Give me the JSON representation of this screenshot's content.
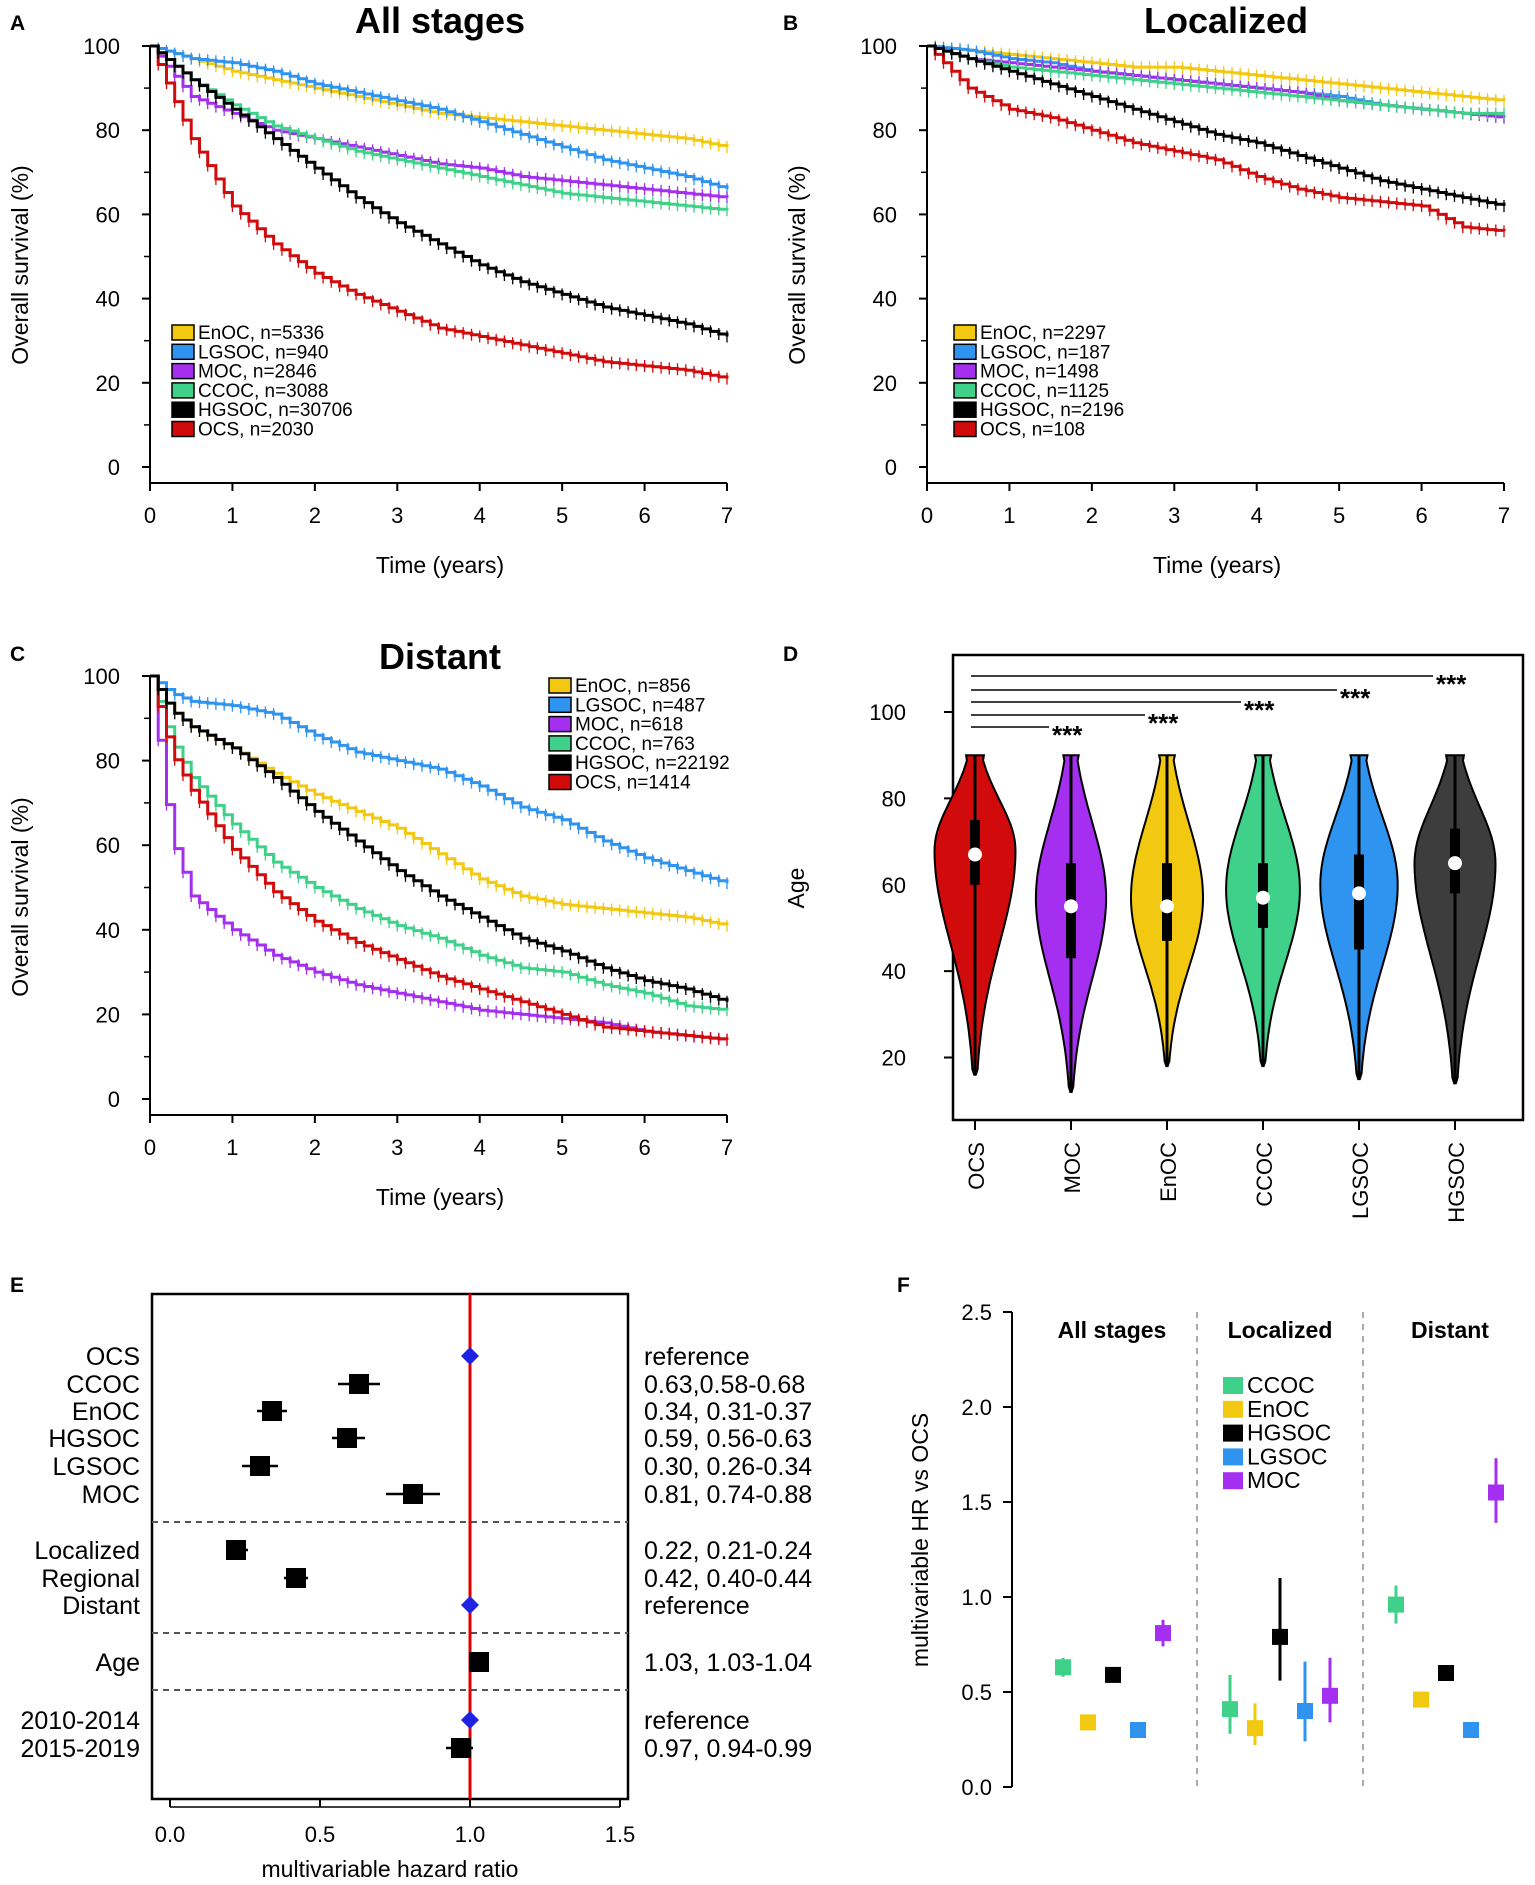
{
  "colors": {
    "EnOC": "#f2c811",
    "LGSOC": "#2f93f0",
    "MOC": "#a42ff0",
    "CCOC": "#3fd189",
    "HGSOC": "#000000",
    "OCS": "#d10b0b",
    "HGSOC_violin": "#3d3d3d",
    "reference_line": "#e00000",
    "reference_marker": "#1f22e0"
  },
  "chart_data": [
    {
      "panel": "A",
      "type": "line",
      "title": "All stages",
      "xlabel": "Time (years)",
      "ylabel": "Overall survival (%)",
      "xlim": [
        0,
        7
      ],
      "ylim": [
        0,
        100
      ],
      "xticks": [
        "0",
        "1",
        "2",
        "3",
        "4",
        "5",
        "6",
        "7"
      ],
      "yticks": [
        "0",
        "20",
        "40",
        "60",
        "80",
        "100"
      ],
      "legend_position": "bottom-left",
      "x": [
        0,
        0.5,
        1,
        1.5,
        2,
        2.5,
        3,
        3.5,
        4,
        4.5,
        5,
        5.5,
        6,
        6.5,
        7
      ],
      "series": [
        {
          "name": "EnOC",
          "legend": "EnOC, n=5336",
          "values": [
            100,
            97,
            94,
            92,
            90,
            88,
            86,
            84,
            83,
            82,
            81,
            80,
            79,
            78,
            76
          ]
        },
        {
          "name": "LGSOC",
          "legend": "LGSOC, n=940",
          "values": [
            100,
            97,
            96,
            94,
            91,
            89,
            87,
            85,
            82,
            79,
            76,
            73,
            71,
            69,
            66
          ]
        },
        {
          "name": "MOC",
          "legend": "MOC, n=2846",
          "values": [
            100,
            88,
            84,
            80,
            78,
            76,
            74,
            72,
            71,
            69,
            68,
            67,
            66,
            65,
            64
          ]
        },
        {
          "name": "CCOC",
          "legend": "CCOC, n=3088",
          "values": [
            100,
            92,
            86,
            81,
            78,
            75,
            73,
            71,
            69,
            67,
            65,
            64,
            63,
            62,
            61
          ]
        },
        {
          "name": "HGSOC",
          "legend": "HGSOC, n=30706",
          "values": [
            100,
            92,
            85,
            78,
            71,
            64,
            58,
            53,
            48,
            44,
            41,
            38,
            36,
            34,
            31
          ]
        },
        {
          "name": "OCS",
          "legend": "OCS, n=2030",
          "values": [
            100,
            78,
            62,
            53,
            46,
            41,
            37,
            33,
            31,
            29,
            27,
            25,
            24,
            23,
            21
          ]
        }
      ]
    },
    {
      "panel": "B",
      "type": "line",
      "title": "Localized",
      "xlabel": "Time (years)",
      "ylabel": "Overall survival (%)",
      "xlim": [
        0,
        7
      ],
      "ylim": [
        0,
        100
      ],
      "xticks": [
        "0",
        "1",
        "2",
        "3",
        "4",
        "5",
        "6",
        "7"
      ],
      "yticks": [
        "0",
        "20",
        "40",
        "60",
        "80",
        "100"
      ],
      "legend_position": "bottom-left",
      "x": [
        0,
        0.5,
        1,
        1.5,
        2,
        2.5,
        3,
        3.5,
        4,
        4.5,
        5,
        5.5,
        6,
        6.5,
        7
      ],
      "series": [
        {
          "name": "EnOC",
          "legend": "EnOC, n=2297",
          "values": [
            100,
            99,
            98,
            97,
            96,
            95,
            95,
            94,
            93,
            92,
            91,
            90,
            89,
            88,
            87
          ]
        },
        {
          "name": "LGSOC",
          "legend": "LGSOC, n=187",
          "values": [
            100,
            99,
            97,
            96,
            94,
            93,
            92,
            91,
            90,
            89,
            88,
            86,
            85,
            84,
            83
          ]
        },
        {
          "name": "MOC",
          "legend": "MOC, n=1498",
          "values": [
            100,
            97,
            96,
            95,
            94,
            93,
            92,
            91,
            90,
            89,
            87,
            86,
            85,
            84,
            83
          ]
        },
        {
          "name": "CCOC",
          "legend": "CCOC, n=1125",
          "values": [
            100,
            97,
            95,
            94,
            93,
            92,
            91,
            90,
            89,
            88,
            87,
            86,
            85,
            84,
            84
          ]
        },
        {
          "name": "HGSOC",
          "legend": "HGSOC, n=2196",
          "values": [
            100,
            97,
            94,
            91,
            88,
            85,
            82,
            79,
            77,
            74,
            71,
            68,
            66,
            64,
            62
          ]
        },
        {
          "name": "OCS",
          "legend": "OCS, n=108",
          "values": [
            100,
            90,
            85,
            83,
            80,
            77,
            75,
            73,
            69,
            66,
            64,
            63,
            62,
            57,
            56
          ]
        }
      ]
    },
    {
      "panel": "C",
      "type": "line",
      "title": "Distant",
      "xlabel": "Time (years)",
      "ylabel": "Overall survival (%)",
      "xlim": [
        0,
        7
      ],
      "ylim": [
        0,
        100
      ],
      "xticks": [
        "0",
        "1",
        "2",
        "3",
        "4",
        "5",
        "6",
        "7"
      ],
      "yticks": [
        "0",
        "20",
        "40",
        "60",
        "80",
        "100"
      ],
      "legend_position": "top-right",
      "x": [
        0,
        0.25,
        0.5,
        1,
        1.5,
        2,
        2.5,
        3,
        3.5,
        4,
        4.5,
        5,
        5.5,
        6,
        6.5,
        7
      ],
      "series": [
        {
          "name": "EnOC",
          "legend": "EnOC, n=856",
          "values": [
            100,
            92,
            88,
            83,
            77,
            72,
            68,
            64,
            58,
            52,
            48,
            46,
            45,
            44,
            43,
            41
          ]
        },
        {
          "name": "LGSOC",
          "legend": "LGSOC, n=487",
          "values": [
            100,
            96,
            94,
            93,
            91,
            86,
            82,
            80,
            78,
            74,
            69,
            66,
            61,
            57,
            54,
            51
          ]
        },
        {
          "name": "MOC",
          "legend": "MOC, n=618",
          "values": [
            100,
            62,
            48,
            40,
            34,
            30,
            27,
            25,
            23,
            21,
            20,
            19,
            18,
            16,
            15,
            14
          ]
        },
        {
          "name": "CCOC",
          "legend": "CCOC, n=763",
          "values": [
            100,
            85,
            76,
            65,
            56,
            50,
            45,
            41,
            38,
            34,
            31,
            30,
            27,
            25,
            22,
            21
          ]
        },
        {
          "name": "HGSOC",
          "legend": "HGSOC, n=22192",
          "values": [
            100,
            92,
            88,
            83,
            76,
            68,
            61,
            54,
            48,
            43,
            38,
            35,
            31,
            28,
            26,
            23
          ]
        },
        {
          "name": "OCS",
          "legend": "OCS, n=1414",
          "values": [
            100,
            82,
            73,
            59,
            49,
            42,
            37,
            33,
            29,
            26,
            23,
            20,
            17,
            16,
            15,
            14
          ]
        }
      ]
    },
    {
      "panel": "D",
      "type": "violin",
      "ylabel": "Age",
      "ylim": [
        10,
        112
      ],
      "yticks": [
        "20",
        "40",
        "60",
        "80",
        "100"
      ],
      "categories": [
        "OCS",
        "MOC",
        "EnOC",
        "CCOC",
        "LGSOC",
        "HGSOC"
      ],
      "groups": [
        {
          "name": "OCS",
          "min": 16,
          "max": 90,
          "q1": 60,
          "median": 67,
          "q3": 75,
          "mode": 68,
          "width": 0.9
        },
        {
          "name": "MOC",
          "min": 12,
          "max": 90,
          "q1": 43,
          "median": 55,
          "q3": 65,
          "mode": 57,
          "width": 0.78
        },
        {
          "name": "EnOC",
          "min": 18,
          "max": 90,
          "q1": 47,
          "median": 55,
          "q3": 65,
          "mode": 57,
          "width": 0.8
        },
        {
          "name": "CCOC",
          "min": 18,
          "max": 90,
          "q1": 50,
          "median": 57,
          "q3": 65,
          "mode": 59,
          "width": 0.82
        },
        {
          "name": "LGSOC",
          "min": 15,
          "max": 90,
          "q1": 45,
          "median": 58,
          "q3": 67,
          "mode": 60,
          "width": 0.86
        },
        {
          "name": "HGSOC",
          "min": 14,
          "max": 90,
          "q1": 58,
          "median": 65,
          "q3": 73,
          "mode": 65,
          "width": 0.9
        }
      ],
      "annotations": [
        {
          "from": "OCS",
          "to": "MOC",
          "label": "***"
        },
        {
          "from": "OCS",
          "to": "EnOC",
          "label": "***"
        },
        {
          "from": "OCS",
          "to": "CCOC",
          "label": "***"
        },
        {
          "from": "OCS",
          "to": "LGSOC",
          "label": "***"
        },
        {
          "from": "OCS",
          "to": "HGSOC",
          "label": "***"
        }
      ]
    },
    {
      "panel": "E",
      "type": "forest",
      "xlabel": "multivariable hazard ratio",
      "xlim": [
        -0.05,
        1.55
      ],
      "xticks": [
        "0.0",
        "0.5",
        "1.0",
        "1.5"
      ],
      "reference_line": 1.0,
      "groups": [
        {
          "rows": [
            {
              "label": "OCS",
              "hr": 1.0,
              "lo": 1.0,
              "hi": 1.0,
              "text": "reference",
              "reference": true
            },
            {
              "label": "CCOC",
              "hr": 0.63,
              "lo": 0.58,
              "hi": 0.68,
              "text": "0.63,0.58-0.68"
            },
            {
              "label": "EnOC",
              "hr": 0.34,
              "lo": 0.31,
              "hi": 0.37,
              "text": "0.34, 0.31-0.37"
            },
            {
              "label": "HGSOC",
              "hr": 0.59,
              "lo": 0.56,
              "hi": 0.63,
              "text": "0.59, 0.56-0.63"
            },
            {
              "label": "LGSOC",
              "hr": 0.3,
              "lo": 0.26,
              "hi": 0.34,
              "text": "0.30, 0.26-0.34"
            },
            {
              "label": "MOC",
              "hr": 0.81,
              "lo": 0.74,
              "hi": 0.88,
              "text": "0.81, 0.74-0.88"
            }
          ]
        },
        {
          "rows": [
            {
              "label": "Localized",
              "hr": 0.22,
              "lo": 0.21,
              "hi": 0.24,
              "text": "0.22, 0.21-0.24"
            },
            {
              "label": "Regional",
              "hr": 0.42,
              "lo": 0.4,
              "hi": 0.44,
              "text": "0.42, 0.40-0.44"
            },
            {
              "label": "Distant",
              "hr": 1.0,
              "lo": 1.0,
              "hi": 1.0,
              "text": "reference",
              "reference": true
            }
          ]
        },
        {
          "rows": [
            {
              "label": "Age",
              "hr": 1.03,
              "lo": 1.03,
              "hi": 1.04,
              "text": "1.03, 1.03-1.04"
            }
          ]
        },
        {
          "rows": [
            {
              "label": "2010-2014",
              "hr": 1.0,
              "lo": 1.0,
              "hi": 1.0,
              "text": "reference",
              "reference": true
            },
            {
              "label": "2015-2019",
              "hr": 0.97,
              "lo": 0.94,
              "hi": 0.99,
              "text": "0.97, 0.94-0.99"
            }
          ]
        }
      ]
    },
    {
      "panel": "F",
      "type": "scatter",
      "ylabel": "multivariable HR vs OCS",
      "ylim": [
        0,
        2.5
      ],
      "yticks": [
        "0.0",
        "0.5",
        "1.0",
        "1.5",
        "2.0",
        "2.5"
      ],
      "legend_position": "top-center",
      "legend": [
        "CCOC",
        "EnOC",
        "HGSOC",
        "LGSOC",
        "MOC"
      ],
      "groups": [
        {
          "title": "All stages",
          "points": [
            {
              "name": "CCOC",
              "hr": 0.63,
              "lo": 0.58,
              "hi": 0.68
            },
            {
              "name": "EnOC",
              "hr": 0.34,
              "lo": 0.31,
              "hi": 0.37
            },
            {
              "name": "HGSOC",
              "hr": 0.59,
              "lo": 0.56,
              "hi": 0.63
            },
            {
              "name": "LGSOC",
              "hr": 0.3,
              "lo": 0.26,
              "hi": 0.34
            },
            {
              "name": "MOC",
              "hr": 0.81,
              "lo": 0.74,
              "hi": 0.88
            }
          ]
        },
        {
          "title": "Localized",
          "points": [
            {
              "name": "CCOC",
              "hr": 0.41,
              "lo": 0.28,
              "hi": 0.59
            },
            {
              "name": "EnOC",
              "hr": 0.31,
              "lo": 0.22,
              "hi": 0.44
            },
            {
              "name": "HGSOC",
              "hr": 0.79,
              "lo": 0.56,
              "hi": 1.1
            },
            {
              "name": "LGSOC",
              "hr": 0.4,
              "lo": 0.24,
              "hi": 0.66
            },
            {
              "name": "MOC",
              "hr": 0.48,
              "lo": 0.34,
              "hi": 0.68
            }
          ]
        },
        {
          "title": "Distant",
          "points": [
            {
              "name": "CCOC",
              "hr": 0.96,
              "lo": 0.86,
              "hi": 1.06
            },
            {
              "name": "EnOC",
              "hr": 0.46,
              "lo": 0.42,
              "hi": 0.5
            },
            {
              "name": "HGSOC",
              "hr": 0.6,
              "lo": 0.57,
              "hi": 0.63
            },
            {
              "name": "LGSOC",
              "hr": 0.3,
              "lo": 0.26,
              "hi": 0.34
            },
            {
              "name": "MOC",
              "hr": 1.55,
              "lo": 1.39,
              "hi": 1.73
            }
          ]
        }
      ]
    }
  ]
}
